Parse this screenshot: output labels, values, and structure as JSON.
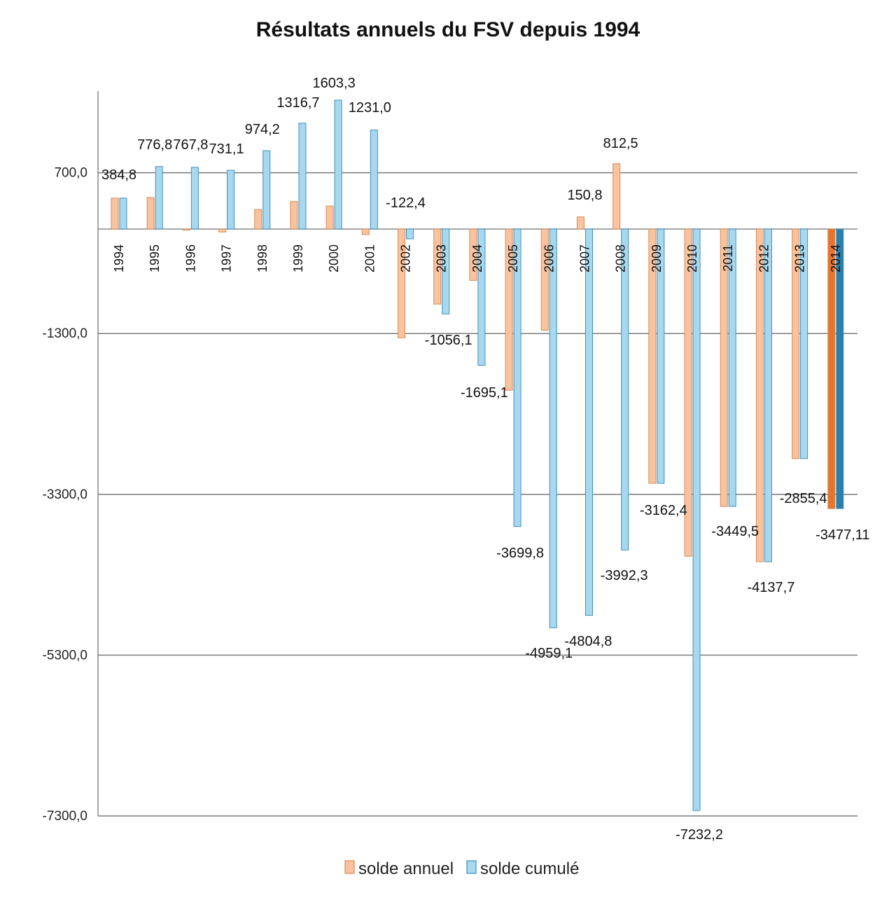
{
  "chart_data": {
    "type": "bar",
    "title": "Résultats annuels du FSV depuis 1994",
    "xlabel": "",
    "ylabel": "",
    "ylim": [
      -7300,
      1800
    ],
    "yticks": [
      700,
      -1300,
      -3300,
      -5300,
      -7300
    ],
    "ytick_labels": [
      "700,0",
      "-1300,0",
      "-3300,0",
      "-5300,0",
      "-7300,0"
    ],
    "grid": true,
    "legend_position": "bottom",
    "categories": [
      "1994",
      "1995",
      "1996",
      "1997",
      "1998",
      "1999",
      "2000",
      "2001",
      "2002",
      "2003",
      "2004",
      "2005",
      "2006",
      "2007",
      "2008",
      "2009",
      "2010",
      "2011",
      "2012",
      "2013",
      "2014"
    ],
    "series": [
      {
        "name": "solde annuel",
        "color": "#f8c39e",
        "border": "#d98b55",
        "highlight_color": "#e8732c",
        "values": [
          384.8,
          392.0,
          -9.0,
          -36.7,
          243.1,
          342.5,
          286.6,
          -70.0,
          -1353.4,
          -933.7,
          -639.0,
          -2004.7,
          -1259.3,
          150.8,
          812.5,
          -3162.4,
          -4069.8,
          -3449.5,
          -4137.7,
          -2855.4,
          -3477.11
        ]
      },
      {
        "name": "solde cumulé",
        "color": "#a8d8ee",
        "border": "#3f8fc1",
        "highlight_color": "#2c7fa6",
        "values": [
          384.8,
          776.8,
          767.8,
          731.1,
          974.2,
          1316.7,
          1603.3,
          1231.0,
          -122.4,
          -1056.1,
          -1695.1,
          -3699.8,
          -4959.1,
          -4804.8,
          -3992.3,
          -3162.4,
          -7232.2,
          -3449.5,
          -4137.7,
          -2855.4,
          -3477.11
        ]
      }
    ],
    "data_labels": [
      {
        "category": "1994",
        "text": "384,8"
      },
      {
        "category": "1995",
        "text": "776,8"
      },
      {
        "category": "1996",
        "text": "767,8"
      },
      {
        "category": "1997",
        "text": "731,1"
      },
      {
        "category": "1998",
        "text": "974,2"
      },
      {
        "category": "1999",
        "text": "1316,7"
      },
      {
        "category": "2000",
        "text": "1603,3"
      },
      {
        "category": "2001",
        "text": "1231,0"
      },
      {
        "category": "2002",
        "text": "-122,4"
      },
      {
        "category": "2003",
        "text": "-1056,1"
      },
      {
        "category": "2004",
        "text": "-1695,1"
      },
      {
        "category": "2005",
        "text": "-3699,8"
      },
      {
        "category": "2006",
        "text": "-4959,1"
      },
      {
        "category": "2007",
        "text": "-4804,8"
      },
      {
        "category": "2007",
        "text": "150,8"
      },
      {
        "category": "2008",
        "text": "812,5"
      },
      {
        "category": "2008",
        "text": "-3992,3"
      },
      {
        "category": "2009",
        "text": "-3162,4"
      },
      {
        "category": "2010",
        "text": "-7232,2"
      },
      {
        "category": "2011",
        "text": "-3449,5"
      },
      {
        "category": "2012",
        "text": "-4137,7"
      },
      {
        "category": "2013",
        "text": "-2855,4"
      },
      {
        "category": "2014",
        "text": "-3477,11"
      }
    ]
  }
}
